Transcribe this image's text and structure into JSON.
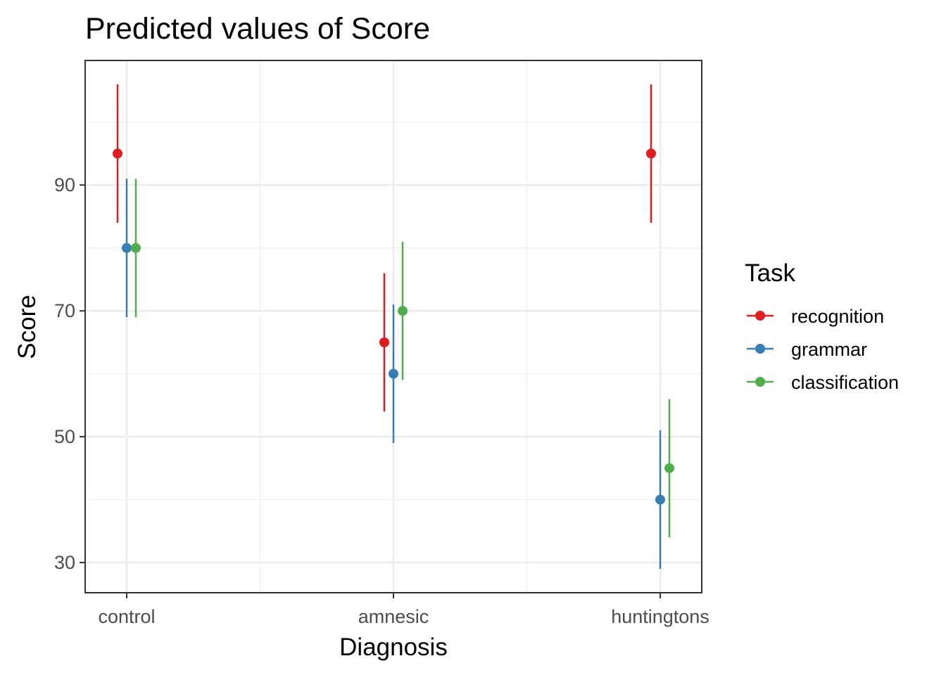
{
  "chart_data": {
    "type": "scatter",
    "title": "Predicted values of Score",
    "xlabel": "Diagnosis",
    "ylabel": "Score",
    "categories": [
      "control",
      "amnesic",
      "huntingtons"
    ],
    "ylim": [
      25.2,
      109.8
    ],
    "yticks": [
      30,
      50,
      70,
      90
    ],
    "grid": true,
    "legend": {
      "title": "Task",
      "position": "right"
    },
    "series": [
      {
        "name": "recognition",
        "color": "#E41A1C",
        "values": [
          95,
          65,
          95
        ],
        "lower": [
          84,
          54,
          84
        ],
        "upper": [
          106,
          76,
          106
        ]
      },
      {
        "name": "grammar",
        "color": "#377EB8",
        "values": [
          80,
          60,
          40
        ],
        "lower": [
          69,
          49,
          29
        ],
        "upper": [
          91,
          71,
          51
        ]
      },
      {
        "name": "classification",
        "color": "#4DAF4A",
        "values": [
          80,
          70,
          45
        ],
        "lower": [
          69,
          59,
          34
        ],
        "upper": [
          91,
          81,
          56
        ]
      }
    ]
  }
}
